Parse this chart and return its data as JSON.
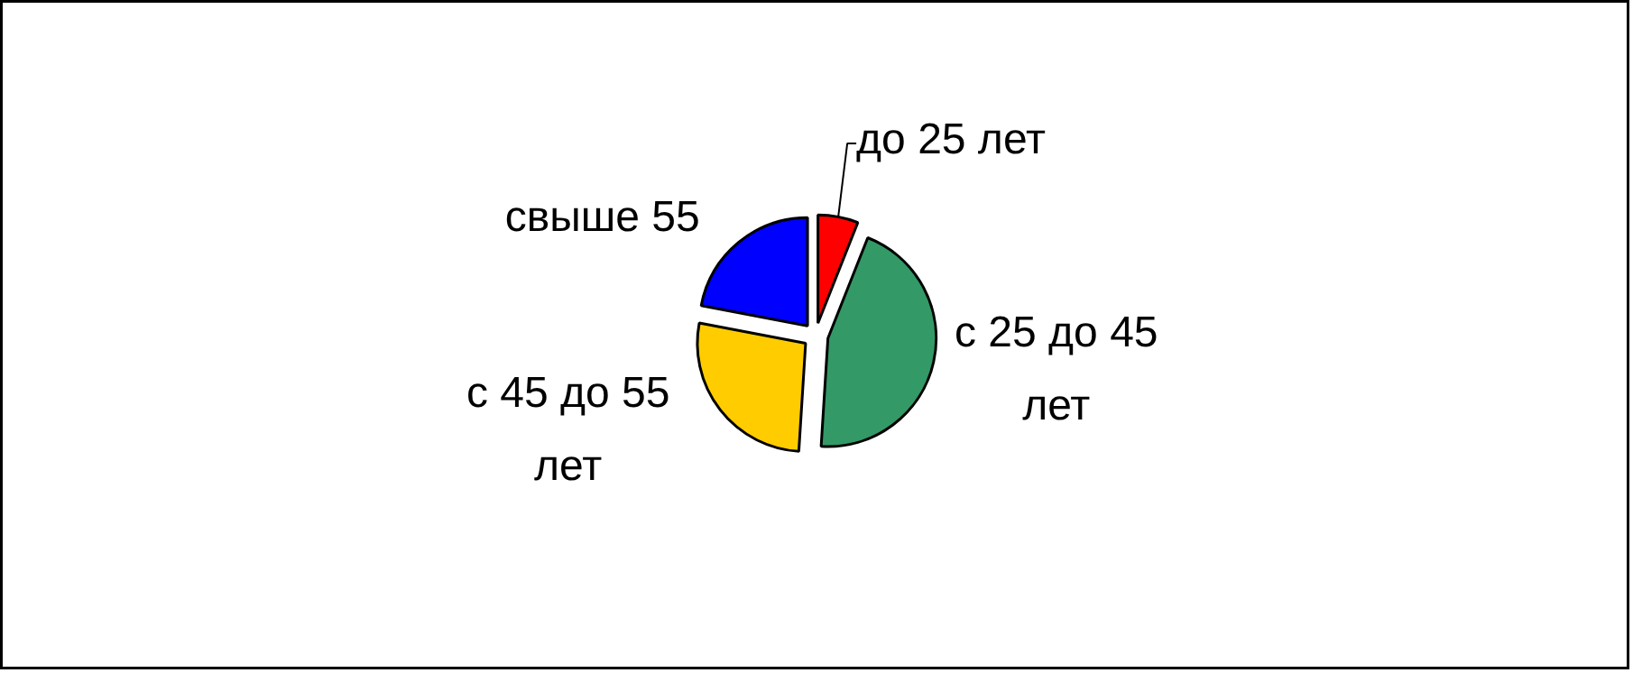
{
  "chart_data": {
    "type": "pie",
    "categories": [
      "до 25 лет",
      "с 25 до 45 лет",
      "с 45 до 55 лет",
      "свыше 55"
    ],
    "values": [
      6,
      45,
      27,
      22
    ],
    "colors": [
      "#ff0000",
      "#339966",
      "#ffcc00",
      "#0000ff"
    ]
  }
}
